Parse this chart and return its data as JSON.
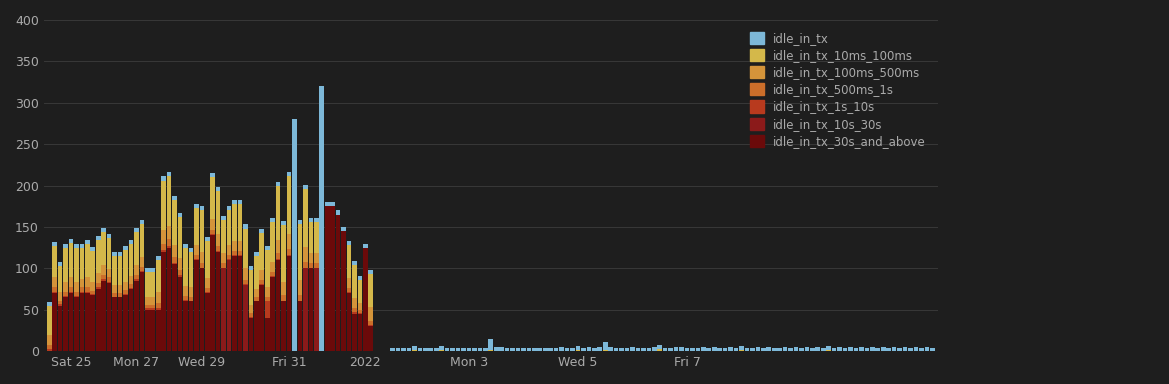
{
  "background_color": "#1e1e1e",
  "text_color": "#aaaaaa",
  "grid_color": "#383838",
  "series_colors": [
    "#7db8d8",
    "#d4b84a",
    "#d4943a",
    "#cc6e2a",
    "#b83a1e",
    "#8b1a1a",
    "#6b0a0a"
  ],
  "legend_labels": [
    "idle_in_tx",
    "idle_in_tx_10ms_100ms",
    "idle_in_tx_100ms_500ms",
    "idle_in_tx_500ms_1s",
    "idle_in_tx_1s_10s",
    "idle_in_tx_10s_30s",
    "idle_in_tx_30s_and_above"
  ],
  "ylim": [
    0,
    400
  ],
  "yticks": [
    0,
    50,
    100,
    150,
    200,
    250,
    300,
    350,
    400
  ],
  "bars_before": [
    [
      5,
      35,
      12,
      5,
      2,
      0,
      0
    ],
    [
      5,
      38,
      12,
      5,
      2,
      0,
      70
    ],
    [
      5,
      32,
      10,
      4,
      2,
      0,
      55
    ],
    [
      5,
      40,
      12,
      5,
      2,
      0,
      65
    ],
    [
      5,
      42,
      12,
      5,
      2,
      0,
      70
    ],
    [
      5,
      40,
      12,
      5,
      2,
      0,
      65
    ],
    [
      5,
      38,
      10,
      5,
      2,
      0,
      70
    ],
    [
      5,
      40,
      12,
      5,
      2,
      0,
      70
    ],
    [
      5,
      38,
      10,
      4,
      1,
      0,
      68
    ],
    [
      5,
      40,
      12,
      5,
      2,
      0,
      75
    ],
    [
      5,
      40,
      12,
      5,
      2,
      0,
      85
    ],
    [
      5,
      38,
      10,
      5,
      2,
      0,
      82
    ],
    [
      5,
      35,
      10,
      4,
      1,
      0,
      65
    ],
    [
      5,
      35,
      10,
      4,
      1,
      0,
      65
    ],
    [
      5,
      38,
      10,
      5,
      1,
      0,
      68
    ],
    [
      5,
      38,
      10,
      5,
      1,
      0,
      75
    ],
    [
      5,
      40,
      12,
      5,
      2,
      0,
      85
    ],
    [
      5,
      40,
      12,
      5,
      2,
      0,
      95
    ],
    [
      5,
      30,
      10,
      4,
      2,
      0,
      50
    ],
    [
      5,
      30,
      10,
      4,
      2,
      0,
      50
    ],
    [
      5,
      38,
      14,
      6,
      2,
      0,
      50
    ],
    [
      5,
      60,
      16,
      8,
      2,
      0,
      120
    ],
    [
      5,
      60,
      16,
      8,
      2,
      0,
      125
    ],
    [
      5,
      55,
      14,
      7,
      2,
      0,
      105
    ],
    [
      5,
      50,
      14,
      6,
      2,
      0,
      90
    ],
    [
      5,
      45,
      12,
      5,
      2,
      0,
      60
    ],
    [
      5,
      42,
      12,
      5,
      1,
      0,
      60
    ],
    [
      5,
      45,
      12,
      5,
      1,
      0,
      110
    ],
    [
      5,
      50,
      14,
      5,
      1,
      0,
      100
    ],
    [
      5,
      45,
      12,
      5,
      1,
      0,
      70
    ],
    [
      5,
      50,
      14,
      5,
      1,
      0,
      140
    ],
    [
      5,
      52,
      14,
      6,
      1,
      0,
      120
    ],
    [
      5,
      40,
      12,
      5,
      1,
      100,
      0
    ],
    [
      5,
      42,
      12,
      5,
      1,
      110,
      0
    ],
    [
      5,
      45,
      12,
      5,
      1,
      0,
      115
    ],
    [
      5,
      45,
      12,
      5,
      1,
      0,
      115
    ],
    [
      5,
      48,
      14,
      5,
      1,
      80,
      0
    ],
    [
      5,
      42,
      10,
      5,
      1,
      0,
      40
    ],
    [
      5,
      40,
      10,
      4,
      1,
      0,
      60
    ],
    [
      5,
      45,
      12,
      5,
      1,
      0,
      80
    ],
    [
      5,
      45,
      12,
      5,
      20,
      0,
      40
    ],
    [
      5,
      48,
      12,
      5,
      1,
      0,
      90
    ],
    [
      5,
      65,
      16,
      7,
      1,
      0,
      110
    ],
    [
      5,
      68,
      16,
      7,
      1,
      0,
      60
    ],
    [
      5,
      70,
      18,
      7,
      1,
      0,
      115
    ],
    [
      280,
      0,
      0,
      0,
      0,
      0,
      0
    ],
    [
      5,
      68,
      18,
      7,
      1,
      0,
      60
    ],
    [
      5,
      70,
      18,
      7,
      1,
      100,
      0
    ],
    [
      5,
      38,
      12,
      5,
      1,
      0,
      100
    ],
    [
      5,
      38,
      12,
      5,
      1,
      100,
      0
    ],
    [
      320,
      0,
      0,
      0,
      0,
      0,
      0
    ],
    [
      5,
      0,
      0,
      0,
      0,
      0,
      175
    ],
    [
      5,
      0,
      0,
      0,
      0,
      0,
      175
    ],
    [
      5,
      0,
      0,
      0,
      0,
      0,
      165
    ],
    [
      5,
      0,
      0,
      0,
      0,
      0,
      145
    ],
    [
      5,
      40,
      12,
      5,
      1,
      0,
      70
    ],
    [
      5,
      40,
      12,
      5,
      2,
      0,
      45
    ],
    [
      5,
      28,
      8,
      4,
      1,
      0,
      45
    ],
    [
      5,
      0,
      0,
      0,
      0,
      0,
      125
    ],
    [
      5,
      40,
      16,
      6,
      1,
      0,
      30
    ]
  ],
  "bars_after": [
    [
      4,
      0,
      0,
      0,
      0,
      0,
      0
    ],
    [
      4,
      0,
      0,
      0,
      0,
      0,
      0
    ],
    [
      4,
      0,
      0,
      0,
      0,
      0,
      0
    ],
    [
      4,
      0,
      0,
      0,
      0,
      0,
      0
    ],
    [
      5,
      1,
      0,
      0,
      0,
      0,
      0
    ],
    [
      4,
      0,
      0,
      0,
      0,
      0,
      0
    ],
    [
      4,
      0,
      0,
      0,
      0,
      0,
      0
    ],
    [
      4,
      0,
      0,
      0,
      0,
      0,
      0
    ],
    [
      4,
      0,
      0,
      0,
      0,
      0,
      0
    ],
    [
      5,
      1,
      0,
      0,
      0,
      0,
      0
    ],
    [
      4,
      0,
      0,
      0,
      0,
      0,
      0
    ],
    [
      4,
      0,
      0,
      0,
      0,
      0,
      0
    ],
    [
      4,
      0,
      0,
      0,
      0,
      0,
      0
    ],
    [
      4,
      0,
      0,
      0,
      0,
      0,
      0
    ],
    [
      4,
      0,
      0,
      0,
      0,
      0,
      0
    ],
    [
      4,
      0,
      0,
      0,
      0,
      0,
      0
    ],
    [
      4,
      0,
      0,
      0,
      0,
      0,
      0
    ],
    [
      4,
      0,
      0,
      0,
      0,
      0,
      0
    ],
    [
      14,
      1,
      0,
      0,
      0,
      0,
      0
    ],
    [
      5,
      0,
      0,
      0,
      0,
      0,
      0
    ],
    [
      5,
      0,
      0,
      0,
      0,
      0,
      0
    ],
    [
      4,
      0,
      0,
      0,
      0,
      0,
      0
    ],
    [
      4,
      0,
      0,
      0,
      0,
      0,
      0
    ],
    [
      4,
      0,
      0,
      0,
      0,
      0,
      0
    ],
    [
      4,
      0,
      0,
      0,
      0,
      0,
      0
    ],
    [
      4,
      0,
      0,
      0,
      0,
      0,
      0
    ],
    [
      4,
      0,
      0,
      0,
      0,
      0,
      0
    ],
    [
      4,
      0,
      0,
      0,
      0,
      0,
      0
    ],
    [
      4,
      0,
      0,
      0,
      0,
      0,
      0
    ],
    [
      4,
      0,
      0,
      0,
      0,
      0,
      0
    ],
    [
      4,
      0,
      0,
      0,
      0,
      0,
      0
    ],
    [
      5,
      0,
      0,
      0,
      0,
      0,
      0
    ],
    [
      4,
      0,
      0,
      0,
      0,
      0,
      0
    ],
    [
      4,
      0,
      0,
      0,
      0,
      0,
      0
    ],
    [
      5,
      1,
      0,
      0,
      0,
      0,
      0
    ],
    [
      4,
      0,
      0,
      0,
      0,
      0,
      0
    ],
    [
      5,
      0,
      0,
      0,
      0,
      0,
      0
    ],
    [
      4,
      0,
      0,
      0,
      0,
      0,
      0
    ],
    [
      5,
      0,
      0,
      0,
      0,
      0,
      0
    ],
    [
      10,
      1,
      0,
      0,
      0,
      0,
      0
    ],
    [
      5,
      0,
      0,
      0,
      0,
      0,
      0
    ],
    [
      4,
      0,
      0,
      0,
      0,
      0,
      0
    ],
    [
      4,
      0,
      0,
      0,
      0,
      0,
      0
    ],
    [
      4,
      0,
      0,
      0,
      0,
      0,
      0
    ],
    [
      5,
      0,
      0,
      0,
      0,
      0,
      0
    ],
    [
      4,
      0,
      0,
      0,
      0,
      0,
      0
    ],
    [
      4,
      0,
      0,
      0,
      0,
      0,
      0
    ],
    [
      4,
      0,
      0,
      0,
      0,
      0,
      0
    ],
    [
      5,
      0,
      0,
      0,
      0,
      0,
      0
    ],
    [
      5,
      3,
      0,
      0,
      0,
      0,
      0
    ],
    [
      4,
      0,
      0,
      0,
      0,
      0,
      0
    ],
    [
      4,
      0,
      0,
      0,
      0,
      0,
      0
    ],
    [
      5,
      0,
      0,
      0,
      0,
      0,
      0
    ],
    [
      5,
      0,
      0,
      0,
      0,
      0,
      0
    ],
    [
      4,
      0,
      0,
      0,
      0,
      0,
      0
    ],
    [
      4,
      0,
      0,
      0,
      0,
      0,
      0
    ],
    [
      4,
      0,
      0,
      0,
      0,
      0,
      0
    ],
    [
      5,
      0,
      0,
      0,
      0,
      0,
      0
    ],
    [
      4,
      0,
      0,
      0,
      0,
      0,
      0
    ],
    [
      5,
      0,
      0,
      0,
      0,
      0,
      0
    ],
    [
      4,
      0,
      0,
      0,
      0,
      0,
      0
    ],
    [
      4,
      0,
      0,
      0,
      0,
      0,
      0
    ],
    [
      5,
      0,
      0,
      0,
      0,
      0,
      0
    ],
    [
      4,
      0,
      0,
      0,
      0,
      0,
      0
    ],
    [
      5,
      1,
      0,
      0,
      0,
      0,
      0
    ],
    [
      4,
      0,
      0,
      0,
      0,
      0,
      0
    ],
    [
      4,
      0,
      0,
      0,
      0,
      0,
      0
    ],
    [
      5,
      0,
      0,
      0,
      0,
      0,
      0
    ],
    [
      4,
      0,
      0,
      0,
      0,
      0,
      0
    ],
    [
      5,
      0,
      0,
      0,
      0,
      0,
      0
    ],
    [
      4,
      0,
      0,
      0,
      0,
      0,
      0
    ],
    [
      4,
      0,
      0,
      0,
      0,
      0,
      0
    ],
    [
      5,
      0,
      0,
      0,
      0,
      0,
      0
    ],
    [
      4,
      0,
      0,
      0,
      0,
      0,
      0
    ],
    [
      5,
      0,
      0,
      0,
      0,
      0,
      0
    ],
    [
      4,
      0,
      0,
      0,
      0,
      0,
      0
    ],
    [
      5,
      0,
      0,
      0,
      0,
      0,
      0
    ],
    [
      4,
      0,
      0,
      0,
      0,
      0,
      0
    ],
    [
      5,
      0,
      0,
      0,
      0,
      0,
      0
    ],
    [
      4,
      0,
      0,
      0,
      0,
      0,
      0
    ],
    [
      5,
      1,
      0,
      0,
      0,
      0,
      0
    ],
    [
      4,
      0,
      0,
      0,
      0,
      0,
      0
    ],
    [
      5,
      0,
      0,
      0,
      0,
      0,
      0
    ],
    [
      4,
      0,
      0,
      0,
      0,
      0,
      0
    ],
    [
      5,
      0,
      0,
      0,
      0,
      0,
      0
    ],
    [
      4,
      0,
      0,
      0,
      0,
      0,
      0
    ],
    [
      5,
      0,
      0,
      0,
      0,
      0,
      0
    ],
    [
      4,
      0,
      0,
      0,
      0,
      0,
      0
    ],
    [
      5,
      0,
      0,
      0,
      0,
      0,
      0
    ],
    [
      4,
      0,
      0,
      0,
      0,
      0,
      0
    ],
    [
      5,
      0,
      0,
      0,
      0,
      0,
      0
    ],
    [
      4,
      0,
      0,
      0,
      0,
      0,
      0
    ],
    [
      5,
      0,
      0,
      0,
      0,
      0,
      0
    ],
    [
      4,
      0,
      0,
      0,
      0,
      0,
      0
    ],
    [
      5,
      0,
      0,
      0,
      0,
      0,
      0
    ],
    [
      4,
      0,
      0,
      0,
      0,
      0,
      0
    ],
    [
      5,
      0,
      0,
      0,
      0,
      0,
      0
    ],
    [
      4,
      0,
      0,
      0,
      0,
      0,
      0
    ],
    [
      5,
      0,
      0,
      0,
      0,
      0,
      0
    ],
    [
      4,
      0,
      0,
      0,
      0,
      0,
      0
    ]
  ],
  "x_tick_labels": [
    "Sat 25",
    "Mon 27",
    "Wed 29",
    "Fri 31",
    "2022",
    "Mon 3",
    "Wed 5",
    "Fri 7"
  ],
  "x_tick_before": [
    4,
    16,
    28,
    44,
    58
  ],
  "x_tick_after_idx": [
    14,
    34,
    54
  ]
}
